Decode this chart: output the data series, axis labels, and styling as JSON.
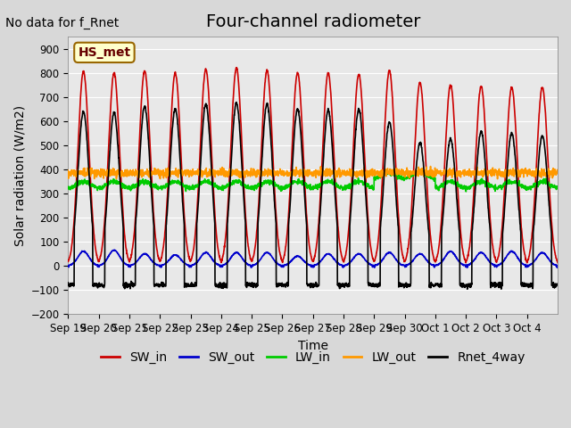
{
  "title": "Four-channel radiometer",
  "top_left_text": "No data for f_Rnet",
  "annotation_box": "HS_met",
  "ylabel": "Solar radiation (W/m2)",
  "xlabel": "Time",
  "ylim": [
    -200,
    950
  ],
  "yticks": [
    -200,
    -100,
    0,
    100,
    200,
    300,
    400,
    500,
    600,
    700,
    800,
    900
  ],
  "x_tick_labels": [
    "Sep 19",
    "Sep 20",
    "Sep 21",
    "Sep 22",
    "Sep 23",
    "Sep 24",
    "Sep 25",
    "Sep 26",
    "Sep 27",
    "Sep 28",
    "Sep 29",
    "Sep 30",
    "Oct 1",
    "Oct 2",
    "Oct 3",
    "Oct 4"
  ],
  "series": {
    "SW_in": {
      "color": "#cc0000",
      "lw": 1.2
    },
    "SW_out": {
      "color": "#0000cc",
      "lw": 1.2
    },
    "LW_in": {
      "color": "#00cc00",
      "lw": 1.2
    },
    "LW_out": {
      "color": "#ff9900",
      "lw": 1.2
    },
    "Rnet_4way": {
      "color": "#000000",
      "lw": 1.2
    }
  },
  "plot_bg_color": "#e8e8e8",
  "grid_color": "#ffffff",
  "title_fontsize": 14,
  "label_fontsize": 10,
  "tick_fontsize": 8.5,
  "annotation_fontsize": 10,
  "n_days": 16
}
